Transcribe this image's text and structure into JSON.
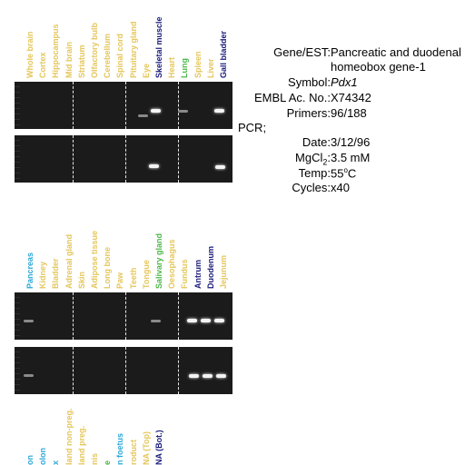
{
  "colors": {
    "brain": "#e5c65a",
    "body_yellow": "#e5c65a",
    "dark_blue": "#1a1a7a",
    "green": "#4cb848",
    "cyan": "#2aa8d8",
    "gel": "#1b1b1b"
  },
  "panel1": {
    "lanes": [
      {
        "label": "Whole brain",
        "color": "#e5c65a"
      },
      {
        "label": "Cortex",
        "color": "#e5c65a"
      },
      {
        "label": "Hippocampus",
        "color": "#e5c65a"
      },
      {
        "label": "Mid brain",
        "color": "#e5c65a"
      },
      {
        "label": "Striatum",
        "color": "#e5c65a"
      },
      {
        "label": "Olfactory bulb",
        "color": "#e5c65a"
      },
      {
        "label": "Cerebellum",
        "color": "#e5c65a"
      },
      {
        "label": "Spinal cord",
        "color": "#e5c65a"
      },
      {
        "label": "Pituitary gland",
        "color": "#e5c65a"
      },
      {
        "label": "Eye",
        "color": "#e5c65a"
      },
      {
        "label": "Skeletal muscle",
        "color": "#1a1a7a"
      },
      {
        "label": "Heart",
        "color": "#e5c65a"
      },
      {
        "label": "Lung",
        "color": "#4cb848"
      },
      {
        "label": "Spleen",
        "color": "#e5c65a"
      },
      {
        "label": "Liver",
        "color": "#e5c65a"
      },
      {
        "label": "Gall bladder",
        "color": "#1a1a7a"
      }
    ]
  },
  "panel2": {
    "lanes": [
      {
        "label": "Pancreas",
        "color": "#2aa8d8"
      },
      {
        "label": "Kidney",
        "color": "#e5c65a"
      },
      {
        "label": "Bladder",
        "color": "#e5c65a"
      },
      {
        "label": "Adrenal gland",
        "color": "#e5c65a"
      },
      {
        "label": "Skin",
        "color": "#e5c65a"
      },
      {
        "label": "Adipose tissue",
        "color": "#e5c65a"
      },
      {
        "label": "Long bone",
        "color": "#e5c65a"
      },
      {
        "label": "Paw",
        "color": "#e5c65a"
      },
      {
        "label": "Teeth",
        "color": "#e5c65a"
      },
      {
        "label": "Tongue",
        "color": "#e5c65a"
      },
      {
        "label": "Salivary gland",
        "color": "#4cb848"
      },
      {
        "label": "Oesophagus",
        "color": "#e5c65a"
      },
      {
        "label": "Fundus",
        "color": "#e5c65a"
      },
      {
        "label": "Antrum",
        "color": "#1a1a7a"
      },
      {
        "label": "Duodenum",
        "color": "#1a1a7a"
      },
      {
        "label": "Jejunum",
        "color": "#e5c65a"
      }
    ]
  },
  "panel3": {
    "lanes": [
      {
        "label": "on",
        "color": "#2aa8d8"
      },
      {
        "label": "olon",
        "color": "#2aa8d8"
      },
      {
        "label": "x",
        "color": "#2aa8d8"
      },
      {
        "label": "land non-preg.",
        "color": "#e5c65a"
      },
      {
        "label": "land preg.",
        "color": "#e5c65a"
      },
      {
        "label": "nis",
        "color": "#e5c65a"
      },
      {
        "label": "e",
        "color": "#4cb848"
      },
      {
        "label": "n foetus",
        "color": "#2aa8d8"
      },
      {
        "label": "roduct",
        "color": "#e5c65a"
      },
      {
        "label": "NA (Top)",
        "color": "#e5c65a"
      },
      {
        "label": "NA (Bot.)",
        "color": "#1a1a7a"
      }
    ]
  },
  "info": {
    "gene_label": "Gene/EST:",
    "gene_value_line1": "Pancreatic and duodenal",
    "gene_value_line2": "homeobox gene-1",
    "symbol_label": "Symbol:",
    "symbol_value": "Pdx1",
    "embl_label": "EMBL Ac. No.:",
    "embl_value": "X74342",
    "primers_label": "Primers:",
    "primers_value": "96/188",
    "pcr_label": "PCR;",
    "date_label": "Date:",
    "date_value": "3/12/96",
    "mgcl_label_a": "MgCl",
    "mgcl_label_sub": "2",
    "mgcl_label_b": ":",
    "mgcl_value": "3.5 mM",
    "temp_label": "Temp:",
    "temp_value_a": "55",
    "temp_value_sup": "o",
    "temp_value_b": "C",
    "cycles_label": "Cycles:",
    "cycles_value": "x40"
  }
}
